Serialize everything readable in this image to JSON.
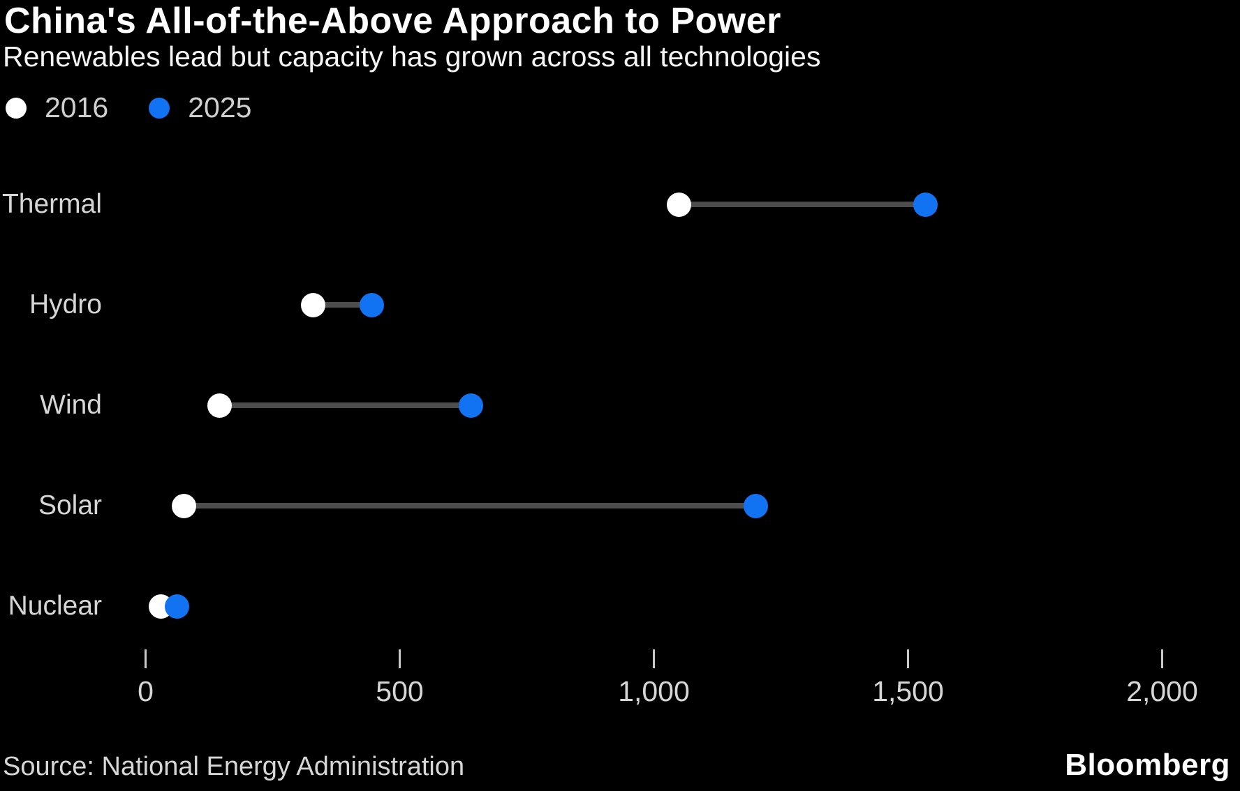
{
  "header": {
    "title": "China's All-of-the-Above Approach to Power",
    "subtitle": "Renewables lead but capacity has grown across all technologies"
  },
  "legend": {
    "items": [
      {
        "label": "2016",
        "color": "#ffffff"
      },
      {
        "label": "2025",
        "color": "#1273f2"
      }
    ]
  },
  "chart_data": {
    "type": "scatter",
    "subtype": "dumbbell",
    "orientation": "horizontal",
    "categories": [
      "Thermal",
      "Hydro",
      "Wind",
      "Solar",
      "Nuclear"
    ],
    "series": [
      {
        "name": "2016",
        "color": "#ffffff",
        "values": [
          1050,
          330,
          145,
          75,
          30
        ]
      },
      {
        "name": "2025",
        "color": "#1273f2",
        "values": [
          1535,
          445,
          640,
          1200,
          62
        ]
      }
    ],
    "xlabel": "",
    "ylabel": "",
    "xlim": [
      0,
      2000
    ],
    "x_ticks": [
      0,
      500,
      1000,
      1500,
      2000
    ],
    "x_tick_labels": [
      "0",
      "500",
      "1,000",
      "1,500",
      "2,000"
    ],
    "grid": false,
    "legend_position": "top-left",
    "connector_color": "#4d4d4d"
  },
  "colors": {
    "background": "#000000",
    "accent_blue": "#1273f2",
    "dot_2016": "#ffffff",
    "text_primary": "#ffffff",
    "text_secondary": "#d6d6d6"
  },
  "footer": {
    "source": "Source: National Energy Administration",
    "brand": "Bloomberg"
  }
}
